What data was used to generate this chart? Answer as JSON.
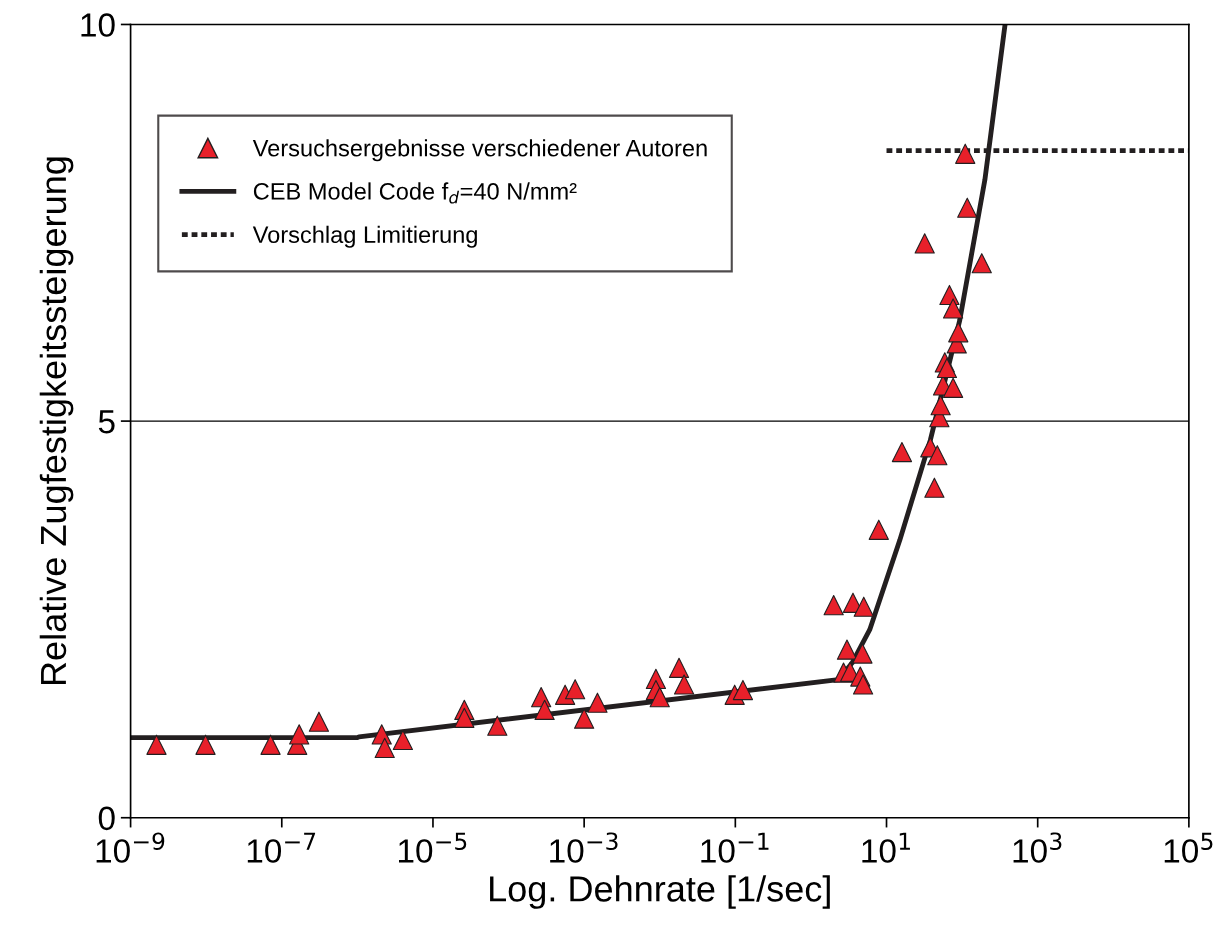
{
  "chart_data": {
    "type": "scatter",
    "xlabel": "Log. Dehnrate [1/sec]",
    "ylabel": "Relative Zugfestigkeitssteigerung",
    "log": "x",
    "grid": "y",
    "legend": "top left",
    "xlim": [
      1e-09,
      100000.0
    ],
    "ylim": [
      0,
      10
    ],
    "xticks": [
      {
        "value": 1e-09,
        "label": "10$^{−9}$"
      },
      {
        "value": 1e-07,
        "label": "10$^{−7}$"
      },
      {
        "value": 1e-05,
        "label": "10$^{−5}$"
      },
      {
        "value": 0.001,
        "label": "10$^{−3}$"
      },
      {
        "value": 0.1,
        "label": "10$^{−1}$"
      },
      {
        "value": 10,
        "label": "10$^{1}$"
      },
      {
        "value": 1000,
        "label": "10$^{3}$"
      },
      {
        "value": 100000,
        "label": "10$^{5}$"
      }
    ],
    "yticks": [
      0,
      5,
      10
    ],
    "series": [
      {
        "name": "Versuchsergebnisse verschiedener Autoren",
        "marker": "triangle",
        "color": "#e8202a",
        "x": [
          2.2e-09,
          9.8e-09,
          7.1e-08,
          1.6e-07,
          1.7e-07,
          3.1e-07,
          2.1e-06,
          2.3e-06,
          4e-06,
          2.6e-05,
          2.6e-05,
          7.1e-05,
          0.00027,
          0.0003,
          0.00056,
          0.00076,
          0.001,
          0.0015,
          0.0089,
          0.0089,
          0.01,
          0.018,
          0.021,
          0.098,
          0.126,
          2.0,
          3.6,
          5.0,
          3.0,
          2.7,
          3.3,
          4.5,
          4.9,
          4.8,
          7.9,
          16,
          32,
          38,
          43,
          47,
          50,
          52,
          56,
          59,
          63,
          76,
          85,
          89,
          68,
          76,
          110,
          117,
          182
        ],
        "values": [
          0.92,
          0.92,
          0.92,
          0.92,
          1.05,
          1.21,
          1.05,
          0.88,
          0.98,
          1.36,
          1.26,
          1.16,
          1.52,
          1.36,
          1.55,
          1.62,
          1.25,
          1.45,
          1.75,
          1.61,
          1.52,
          1.89,
          1.68,
          1.55,
          1.61,
          2.68,
          2.71,
          2.66,
          2.12,
          1.83,
          1.84,
          1.78,
          1.68,
          2.07,
          3.63,
          4.61,
          7.24,
          4.67,
          4.16,
          4.57,
          5.05,
          5.2,
          5.45,
          5.74,
          5.67,
          5.42,
          5.98,
          6.12,
          6.59,
          6.42,
          8.37,
          7.69,
          6.99
        ]
      },
      {
        "name": "CEB Model Code f$_{d}$=40 N/mm²",
        "type": "line",
        "line_style": "solid",
        "color": "#231f20",
        "x": [
          1e-09,
          1e-06,
          1.05e-06,
          2.3,
          3.5,
          6.0,
          15,
          38,
          93,
          200,
          370
        ],
        "values": [
          1.01,
          1.01,
          1.02,
          1.74,
          1.95,
          2.37,
          3.5,
          4.76,
          6.27,
          8.04,
          10.0
        ]
      },
      {
        "name": "Vorschlag Limitierung",
        "type": "line",
        "line_style": "dotted",
        "color": "#231f20",
        "x": [
          10,
          100000
        ],
        "values": [
          8.41,
          8.41
        ]
      }
    ]
  }
}
